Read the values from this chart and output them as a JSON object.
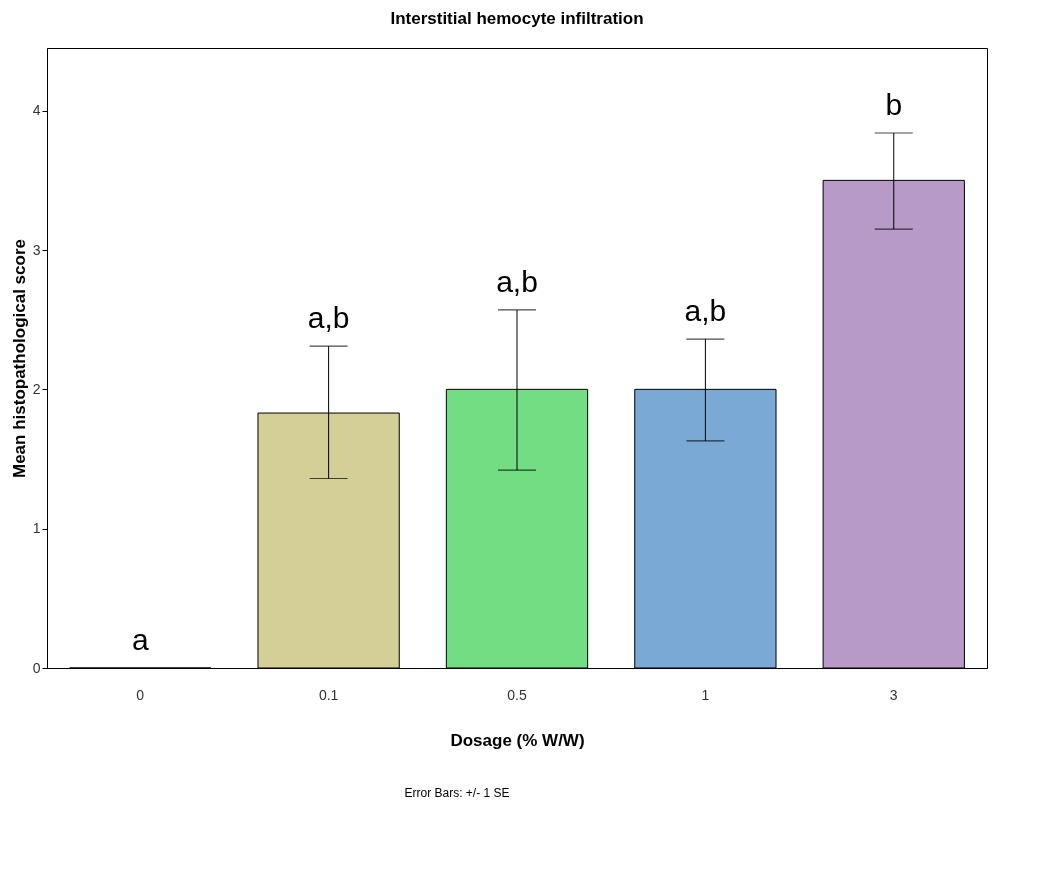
{
  "chart_data": {
    "type": "bar",
    "title": "Interstitial hemocyte infiltration",
    "xlabel": "Dosage (% W/W)",
    "ylabel": "Mean histopathological score",
    "categories": [
      "0",
      "0.1",
      "0.5",
      "1",
      "3"
    ],
    "values": [
      0,
      1.83,
      2.0,
      2.0,
      3.5
    ],
    "colors": [
      "#000000",
      "#d4cf96",
      "#72dd82",
      "#7aa9d6",
      "#b79ac8"
    ],
    "errors": [
      null,
      [
        1.36,
        2.31
      ],
      [
        1.42,
        2.57
      ],
      [
        1.63,
        2.36
      ],
      [
        3.15,
        3.84
      ]
    ],
    "ylim": [
      0,
      4.45
    ],
    "yticks": [
      0,
      1,
      2,
      3,
      4
    ],
    "grid": false,
    "annotations": [
      "a",
      "a,b",
      "a,b",
      "a,b",
      "b",
      "Error Bars: +/- 1 SE"
    ]
  }
}
